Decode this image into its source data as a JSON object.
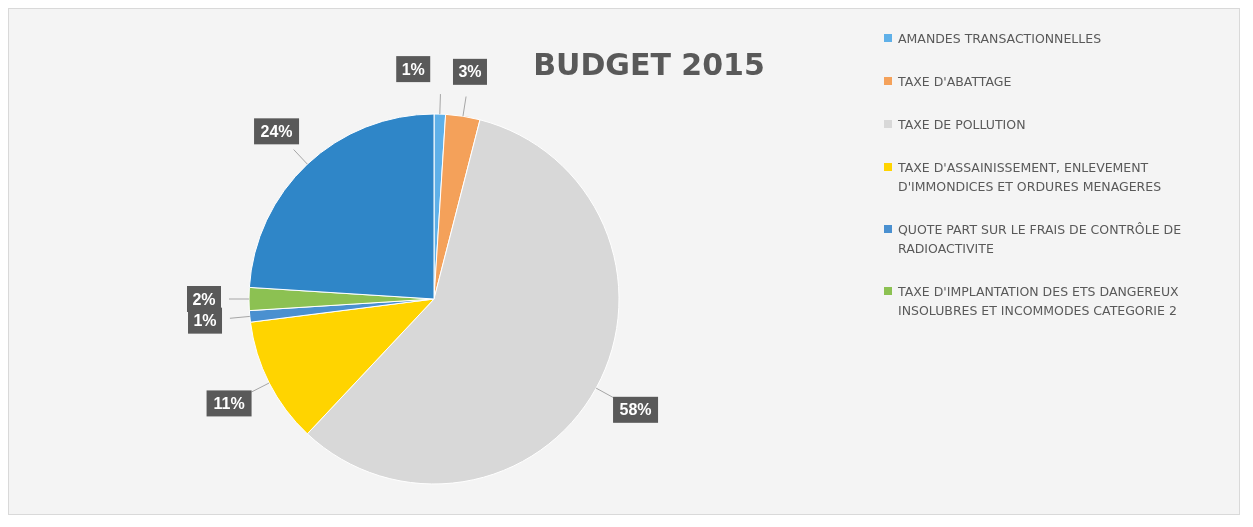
{
  "chart_data": {
    "type": "pie",
    "title": "BUDGET 2015",
    "categories": [
      "AMANDES TRANSACTIONNELLES",
      "TAXE D'ABATTAGE",
      "TAXE DE POLLUTION",
      "TAXE D'ASSAINISSEMENT, ENLEVEMENT D'IMMONDICES ET ORDURES MENAGERES",
      "QUOTE PART SUR LE FRAIS DE CONTRÔLE DE RADIOACTIVITE",
      "TAXE D'IMPLANTATION DES ETS DANGEREUX INSOLUBRES ET INCOMMODES CATEGORIE 2",
      null
    ],
    "values": [
      1,
      3,
      58,
      11,
      1,
      2,
      24
    ],
    "value_labels": [
      "1%",
      "3%",
      "58%",
      "11%",
      "1%",
      "2%",
      "24%"
    ],
    "colors": [
      "#5fb0e8",
      "#f4a15a",
      "#d8d8d8",
      "#ffd400",
      "#4a90d0",
      "#8cc152",
      "#2f86c8"
    ],
    "legend": "right"
  }
}
